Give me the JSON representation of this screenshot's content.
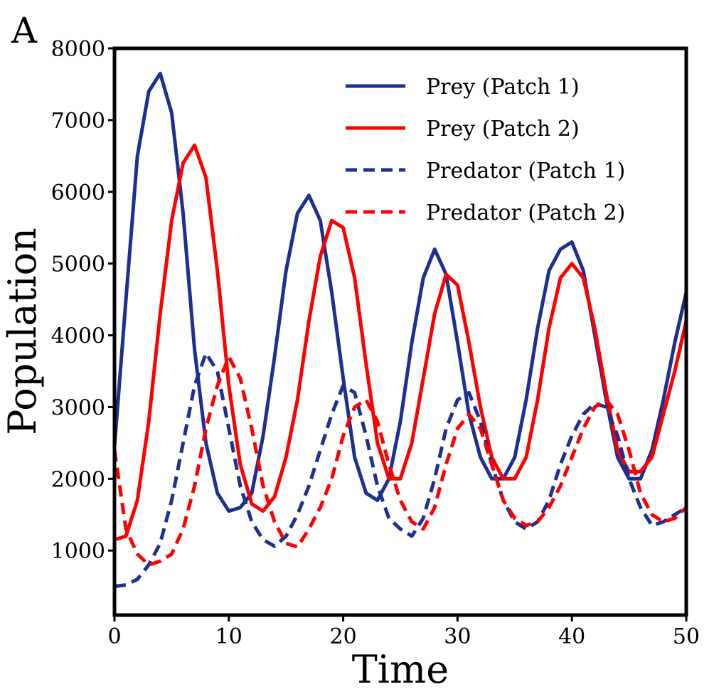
{
  "panel_label": "A",
  "chart_data": {
    "type": "line",
    "title": "",
    "xlabel": "Time",
    "ylabel": "Population",
    "xlim": [
      0,
      50
    ],
    "ylim": [
      100,
      8000
    ],
    "xticks": [
      0,
      10,
      20,
      30,
      40,
      50
    ],
    "xtick_labels": [
      "0",
      "10",
      "20",
      "30",
      "40",
      "50"
    ],
    "yticks": [
      1000,
      2000,
      3000,
      4000,
      5000,
      6000,
      7000,
      8000
    ],
    "ytick_labels": [
      "1000",
      "2000",
      "3000",
      "4000",
      "5000",
      "6000",
      "7000",
      "8000"
    ],
    "grid": false,
    "legend_position": "top-right",
    "x": [
      0,
      1,
      2,
      3,
      4,
      5,
      6,
      7,
      8,
      9,
      10,
      11,
      12,
      13,
      14,
      15,
      16,
      17,
      18,
      19,
      20,
      21,
      22,
      23,
      24,
      25,
      26,
      27,
      28,
      29,
      30,
      31,
      32,
      33,
      34,
      35,
      36,
      37,
      38,
      39,
      40,
      41,
      42,
      43,
      44,
      45,
      46,
      47,
      48,
      49,
      50
    ],
    "series": [
      {
        "name": "Prey (Patch 1)",
        "color": "#1f2f8f",
        "style": "solid",
        "values": [
          2450,
          4500,
          6500,
          7400,
          7650,
          7100,
          5700,
          3800,
          2500,
          1800,
          1550,
          1600,
          1800,
          2600,
          3700,
          4900,
          5700,
          5950,
          5600,
          4600,
          3400,
          2300,
          1800,
          1700,
          2000,
          2800,
          3900,
          4800,
          5200,
          4850,
          3900,
          2900,
          2300,
          2000,
          2000,
          2300,
          3100,
          4100,
          4900,
          5200,
          5300,
          4900,
          4000,
          3100,
          2300,
          2000,
          2000,
          2400,
          3100,
          3900,
          4600
        ]
      },
      {
        "name": "Prey (Patch 2)",
        "color": "#ff0000",
        "style": "solid",
        "values": [
          1150,
          1200,
          1700,
          2800,
          4300,
          5600,
          6400,
          6650,
          6200,
          4900,
          3300,
          2200,
          1650,
          1550,
          1750,
          2300,
          3100,
          4200,
          5100,
          5600,
          5500,
          4800,
          3600,
          2500,
          2000,
          2000,
          2500,
          3400,
          4300,
          4850,
          4700,
          3900,
          3000,
          2300,
          2000,
          2000,
          2300,
          3100,
          4100,
          4800,
          5000,
          4800,
          4100,
          3200,
          2400,
          2100,
          2100,
          2300,
          2900,
          3500,
          4200
        ]
      },
      {
        "name": "Predator (Patch 1)",
        "color": "#1f2f8f",
        "style": "dashed",
        "values": [
          500,
          520,
          600,
          800,
          1100,
          1700,
          2500,
          3300,
          3750,
          3500,
          2700,
          1900,
          1400,
          1150,
          1060,
          1200,
          1500,
          1900,
          2400,
          2900,
          3300,
          3200,
          2600,
          1900,
          1450,
          1300,
          1200,
          1450,
          2000,
          2700,
          3100,
          3200,
          2800,
          2200,
          1700,
          1400,
          1300,
          1400,
          1700,
          2200,
          2600,
          2900,
          3050,
          3000,
          2600,
          2000,
          1600,
          1350,
          1400,
          1500,
          1600
        ]
      },
      {
        "name": "Predator (Patch 2)",
        "color": "#ff0000",
        "style": "dashed",
        "values": [
          2400,
          1300,
          950,
          800,
          850,
          950,
          1300,
          1900,
          2700,
          3300,
          3700,
          3400,
          2700,
          1900,
          1400,
          1100,
          1050,
          1300,
          1600,
          2000,
          2600,
          3000,
          3100,
          2800,
          2200,
          1700,
          1400,
          1300,
          1600,
          2200,
          2700,
          2900,
          2700,
          2200,
          1700,
          1450,
          1350,
          1400,
          1600,
          1900,
          2300,
          2700,
          3000,
          3100,
          2900,
          2400,
          1800,
          1500,
          1400,
          1450,
          1600
        ]
      }
    ]
  }
}
